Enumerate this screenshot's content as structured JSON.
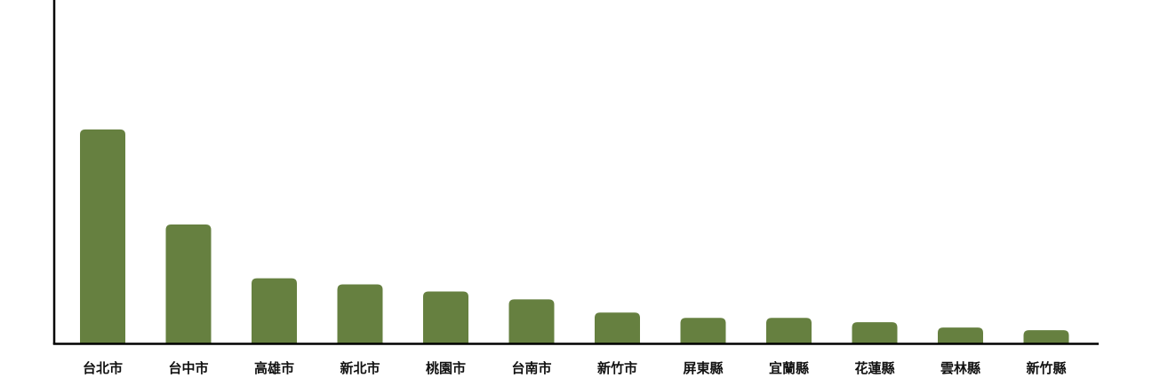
{
  "chart_data": {
    "type": "bar",
    "title": "",
    "xlabel": "",
    "ylabel": "",
    "categories": [
      "台北市",
      "台中市",
      "高雄市",
      "新北市",
      "桃園市",
      "台南市",
      "新竹市",
      "屏東縣",
      "宜蘭縣",
      "花蓮縣",
      "雲林縣",
      "新竹縣"
    ],
    "values": [
      243,
      135,
      74,
      67,
      59,
      50,
      35,
      29,
      29,
      24,
      18,
      15
    ],
    "ylim": [
      0,
      390
    ],
    "grid": false,
    "legend": "none",
    "colors": {
      "bar": "#668040",
      "axis": "#000000",
      "label": "#111111"
    }
  }
}
